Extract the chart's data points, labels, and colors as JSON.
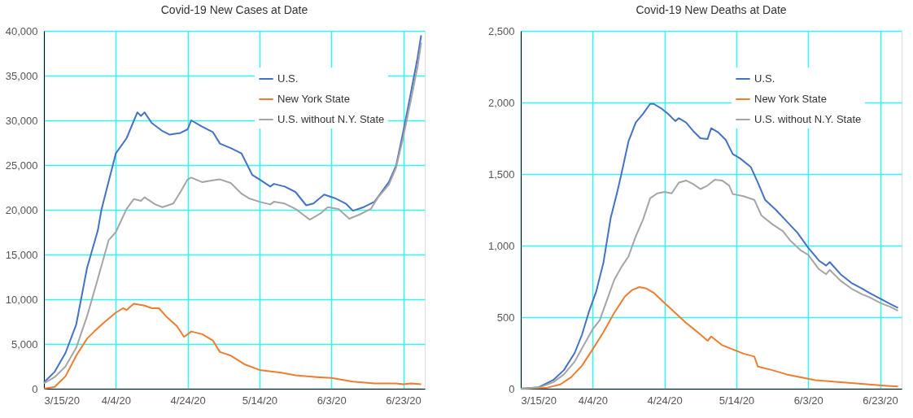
{
  "chart_data": [
    {
      "type": "line",
      "title": "Covid-19 New Cases at Date",
      "xlim": [
        "2020-03-15",
        "2020-06-29"
      ],
      "ylim": [
        0,
        40000
      ],
      "xticks": [
        {
          "value": "2020-03-15",
          "label": "3/15/20"
        },
        {
          "value": "2020-04-04",
          "label": "4/4/20"
        },
        {
          "value": "2020-04-24",
          "label": "4/24/20"
        },
        {
          "value": "2020-05-14",
          "label": "5/14/20"
        },
        {
          "value": "2020-06-03",
          "label": "6/3/20"
        },
        {
          "value": "2020-06-23",
          "label": "6/23/20"
        }
      ],
      "yticks": [
        {
          "value": 0,
          "label": "0"
        },
        {
          "value": 5000,
          "label": "5,000"
        },
        {
          "value": 10000,
          "label": "10,000"
        },
        {
          "value": 15000,
          "label": "15,000"
        },
        {
          "value": 20000,
          "label": "20,000"
        },
        {
          "value": 25000,
          "label": "25,000"
        },
        {
          "value": 30000,
          "label": "30,000"
        },
        {
          "value": 35000,
          "label": "35,000"
        },
        {
          "value": 40000,
          "label": "40,000"
        }
      ],
      "grid": true,
      "legend": "top right",
      "line_style": "solid",
      "marker": "none",
      "series": [
        {
          "name": "U.S.",
          "color": "#4472c4",
          "x": [
            "2020-03-15",
            "2020-03-18",
            "2020-03-21",
            "2020-03-24",
            "2020-03-27",
            "2020-03-30",
            "2020-03-31",
            "2020-04-04",
            "2020-04-07",
            "2020-04-10",
            "2020-04-11",
            "2020-04-12",
            "2020-04-14",
            "2020-04-17",
            "2020-04-19",
            "2020-04-22",
            "2020-04-24",
            "2020-04-25",
            "2020-04-28",
            "2020-05-01",
            "2020-05-03",
            "2020-05-06",
            "2020-05-09",
            "2020-05-12",
            "2020-05-14",
            "2020-05-17",
            "2020-05-18",
            "2020-05-21",
            "2020-05-24",
            "2020-05-27",
            "2020-05-29",
            "2020-06-01",
            "2020-06-04",
            "2020-06-07",
            "2020-06-09",
            "2020-06-12",
            "2020-06-15",
            "2020-06-17",
            "2020-06-19",
            "2020-06-21",
            "2020-06-23",
            "2020-06-25",
            "2020-06-27",
            "2020-06-28"
          ],
          "values": [
            700,
            1900,
            4000,
            7200,
            13500,
            17700,
            20000,
            26300,
            28000,
            30900,
            30500,
            30900,
            29700,
            28800,
            28400,
            28600,
            29000,
            30000,
            29300,
            28700,
            27400,
            26900,
            26300,
            23900,
            23400,
            22600,
            22900,
            22600,
            22000,
            20500,
            20700,
            21700,
            21300,
            20700,
            19900,
            20300,
            20900,
            22000,
            23100,
            24900,
            28700,
            32800,
            37000,
            39500
          ]
        },
        {
          "name": "New York State",
          "color": "#ed7d31",
          "x": [
            "2020-03-15",
            "2020-03-18",
            "2020-03-21",
            "2020-03-24",
            "2020-03-27",
            "2020-03-29",
            "2020-04-01",
            "2020-04-04",
            "2020-04-06",
            "2020-04-07",
            "2020-04-09",
            "2020-04-12",
            "2020-04-14",
            "2020-04-16",
            "2020-04-18",
            "2020-04-21",
            "2020-04-23",
            "2020-04-25",
            "2020-04-28",
            "2020-05-01",
            "2020-05-03",
            "2020-05-06",
            "2020-05-10",
            "2020-05-14",
            "2020-05-20",
            "2020-05-24",
            "2020-05-30",
            "2020-06-03",
            "2020-06-09",
            "2020-06-15",
            "2020-06-21",
            "2020-06-23",
            "2020-06-25",
            "2020-06-28"
          ],
          "values": [
            0,
            200,
            1400,
            3700,
            5600,
            6400,
            7500,
            8500,
            9000,
            8800,
            9500,
            9300,
            9000,
            9000,
            8100,
            7000,
            5800,
            6400,
            6100,
            5400,
            4100,
            3700,
            2700,
            2100,
            1800,
            1500,
            1300,
            1200,
            800,
            600,
            600,
            500,
            600,
            500
          ]
        },
        {
          "name": "U.S. without N.Y. State",
          "color": "#a5a5a5",
          "x": [
            "2020-03-15",
            "2020-03-18",
            "2020-03-21",
            "2020-03-24",
            "2020-03-27",
            "2020-03-30",
            "2020-04-02",
            "2020-04-04",
            "2020-04-07",
            "2020-04-09",
            "2020-04-11",
            "2020-04-12",
            "2020-04-15",
            "2020-04-17",
            "2020-04-20",
            "2020-04-22",
            "2020-04-24",
            "2020-04-25",
            "2020-04-28",
            "2020-05-01",
            "2020-05-03",
            "2020-05-06",
            "2020-05-09",
            "2020-05-11",
            "2020-05-14",
            "2020-05-17",
            "2020-05-18",
            "2020-05-21",
            "2020-05-24",
            "2020-05-26",
            "2020-05-28",
            "2020-05-31",
            "2020-06-02",
            "2020-06-05",
            "2020-06-08",
            "2020-06-11",
            "2020-06-14",
            "2020-06-16",
            "2020-06-19",
            "2020-06-21",
            "2020-06-23",
            "2020-06-25",
            "2020-06-27",
            "2020-06-28"
          ],
          "values": [
            600,
            1300,
            2500,
            4600,
            8100,
            12300,
            16600,
            17500,
            20100,
            21200,
            21000,
            21400,
            20600,
            20300,
            20700,
            22000,
            23400,
            23600,
            23100,
            23300,
            23400,
            23000,
            21800,
            21300,
            20900,
            20600,
            20900,
            20700,
            20100,
            19500,
            18900,
            19600,
            20300,
            20100,
            19000,
            19500,
            20100,
            21400,
            22800,
            24700,
            28100,
            32000,
            36000,
            38700
          ]
        }
      ]
    },
    {
      "type": "line",
      "title": "Covid-19 New Deaths at Date",
      "xlim": [
        "2020-03-15",
        "2020-06-29"
      ],
      "ylim": [
        0,
        2500
      ],
      "xticks": [
        {
          "value": "2020-03-15",
          "label": "3/15/20"
        },
        {
          "value": "2020-04-04",
          "label": "4/4/20"
        },
        {
          "value": "2020-04-24",
          "label": "4/24/20"
        },
        {
          "value": "2020-05-14",
          "label": "5/14/20"
        },
        {
          "value": "2020-06-03",
          "label": "6/3/20"
        },
        {
          "value": "2020-06-23",
          "label": "6/23/20"
        }
      ],
      "yticks": [
        {
          "value": 0,
          "label": "0"
        },
        {
          "value": 500,
          "label": "500"
        },
        {
          "value": 1000,
          "label": "1,000"
        },
        {
          "value": 1500,
          "label": "1,500"
        },
        {
          "value": 2000,
          "label": "2,000"
        },
        {
          "value": 2500,
          "label": "2,500"
        }
      ],
      "grid": true,
      "legend": "top right",
      "line_style": "solid",
      "marker": "none",
      "series": [
        {
          "name": "U.S.",
          "color": "#4472c4",
          "x": [
            "2020-03-15",
            "2020-03-20",
            "2020-03-24",
            "2020-03-27",
            "2020-03-30",
            "2020-04-01",
            "2020-04-03",
            "2020-04-05",
            "2020-04-07",
            "2020-04-09",
            "2020-04-11",
            "2020-04-12",
            "2020-04-14",
            "2020-04-16",
            "2020-04-18",
            "2020-04-20",
            "2020-04-21",
            "2020-04-23",
            "2020-04-25",
            "2020-04-27",
            "2020-04-28",
            "2020-04-30",
            "2020-05-02",
            "2020-05-04",
            "2020-05-06",
            "2020-05-07",
            "2020-05-09",
            "2020-05-11",
            "2020-05-13",
            "2020-05-15",
            "2020-05-18",
            "2020-05-20",
            "2020-05-22",
            "2020-05-25",
            "2020-05-28",
            "2020-05-31",
            "2020-06-03",
            "2020-06-06",
            "2020-06-08",
            "2020-06-09",
            "2020-06-12",
            "2020-06-15",
            "2020-06-18",
            "2020-06-20",
            "2020-06-23",
            "2020-06-26",
            "2020-06-28"
          ],
          "values": [
            0,
            10,
            60,
            130,
            250,
            375,
            540,
            680,
            880,
            1190,
            1390,
            1500,
            1730,
            1860,
            1920,
            1990,
            1990,
            1960,
            1920,
            1870,
            1890,
            1860,
            1800,
            1750,
            1745,
            1820,
            1790,
            1740,
            1640,
            1610,
            1550,
            1440,
            1320,
            1250,
            1170,
            1090,
            985,
            895,
            860,
            885,
            800,
            740,
            700,
            670,
            630,
            590,
            565
          ]
        },
        {
          "name": "New York State",
          "color": "#ed7d31",
          "x": [
            "2020-03-15",
            "2020-03-22",
            "2020-03-26",
            "2020-03-29",
            "2020-04-01",
            "2020-04-04",
            "2020-04-07",
            "2020-04-10",
            "2020-04-13",
            "2020-04-15",
            "2020-04-17",
            "2020-04-19",
            "2020-04-21",
            "2020-04-24",
            "2020-04-27",
            "2020-04-30",
            "2020-05-03",
            "2020-05-06",
            "2020-05-07",
            "2020-05-10",
            "2020-05-13",
            "2020-05-16",
            "2020-05-19",
            "2020-05-20",
            "2020-05-24",
            "2020-05-28",
            "2020-06-01",
            "2020-06-05",
            "2020-06-10",
            "2020-06-15",
            "2020-06-20",
            "2020-06-25",
            "2020-06-28"
          ],
          "values": [
            0,
            5,
            30,
            80,
            160,
            275,
            395,
            530,
            645,
            690,
            710,
            700,
            670,
            600,
            530,
            460,
            400,
            335,
            365,
            305,
            275,
            245,
            225,
            155,
            130,
            100,
            80,
            60,
            50,
            40,
            30,
            20,
            15
          ]
        },
        {
          "name": "U.S. without N.Y. State",
          "color": "#a5a5a5",
          "x": [
            "2020-03-15",
            "2020-03-20",
            "2020-03-24",
            "2020-03-27",
            "2020-03-30",
            "2020-04-02",
            "2020-04-04",
            "2020-04-06",
            "2020-04-08",
            "2020-04-10",
            "2020-04-12",
            "2020-04-14",
            "2020-04-16",
            "2020-04-18",
            "2020-04-20",
            "2020-04-22",
            "2020-04-24",
            "2020-04-26",
            "2020-04-28",
            "2020-04-30",
            "2020-05-02",
            "2020-05-04",
            "2020-05-06",
            "2020-05-08",
            "2020-05-10",
            "2020-05-12",
            "2020-05-13",
            "2020-05-16",
            "2020-05-19",
            "2020-05-21",
            "2020-05-24",
            "2020-05-27",
            "2020-05-29",
            "2020-06-01",
            "2020-06-03",
            "2020-06-06",
            "2020-06-08",
            "2020-06-09",
            "2020-06-12",
            "2020-06-15",
            "2020-06-18",
            "2020-06-20",
            "2020-06-23",
            "2020-06-26",
            "2020-06-28"
          ],
          "values": [
            0,
            8,
            45,
            100,
            190,
            325,
            415,
            480,
            620,
            760,
            850,
            925,
            1065,
            1180,
            1330,
            1365,
            1375,
            1365,
            1440,
            1455,
            1430,
            1395,
            1420,
            1460,
            1455,
            1420,
            1360,
            1345,
            1320,
            1210,
            1150,
            1100,
            1035,
            965,
            935,
            835,
            800,
            830,
            755,
            700,
            660,
            640,
            600,
            570,
            545
          ]
        }
      ]
    }
  ]
}
